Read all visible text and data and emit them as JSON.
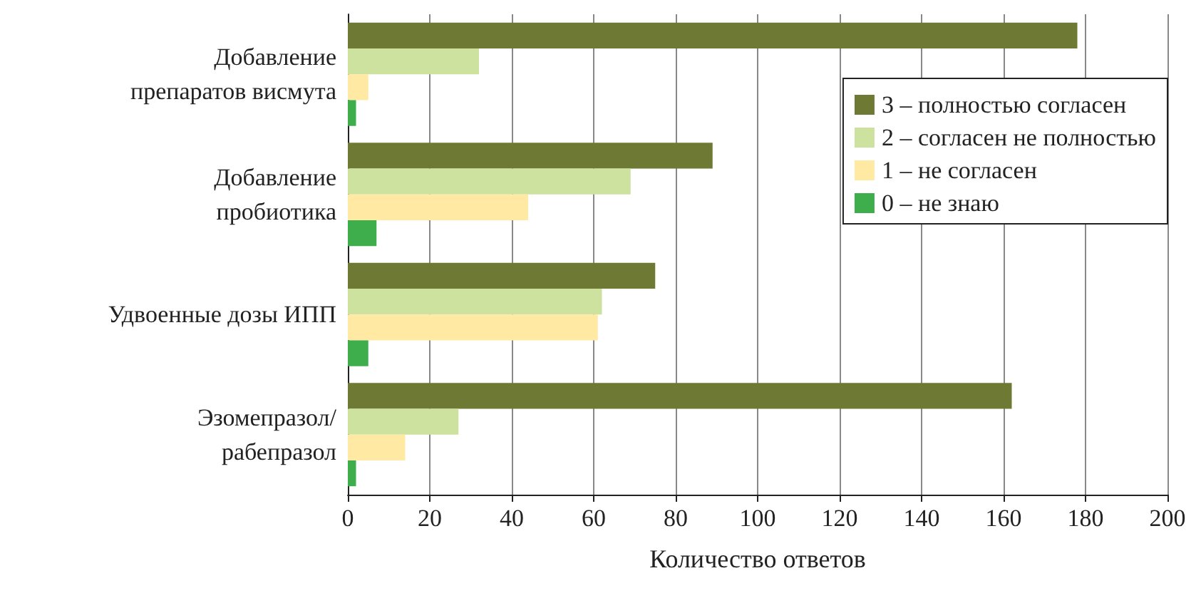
{
  "chart_data": {
    "type": "bar",
    "orientation": "horizontal",
    "xlabel": "Количество ответов",
    "categories": [
      "Добавление\nпрепаратов висмута",
      "Добавление\nпробиотика",
      "Удвоенные дозы ИПП",
      "Эзомепразол/\nрабепразол"
    ],
    "series": [
      {
        "name": "3 – полностью согласен",
        "color": "#6e7a34",
        "values": [
          178,
          89,
          75,
          162
        ]
      },
      {
        "name": "2 – согласен не полностью",
        "color": "#cce29e",
        "values": [
          32,
          69,
          62,
          27
        ]
      },
      {
        "name": "1 – не согласен",
        "color": "#ffe9a3",
        "values": [
          5,
          44,
          61,
          14
        ]
      },
      {
        "name": "0 – не знаю",
        "color": "#3eae4c",
        "values": [
          2,
          7,
          5,
          2
        ]
      }
    ],
    "xlim": [
      0,
      200
    ],
    "xticks": [
      0,
      20,
      40,
      60,
      80,
      100,
      120,
      140,
      160,
      180,
      200
    ],
    "grid": "x",
    "legend": "top right"
  }
}
